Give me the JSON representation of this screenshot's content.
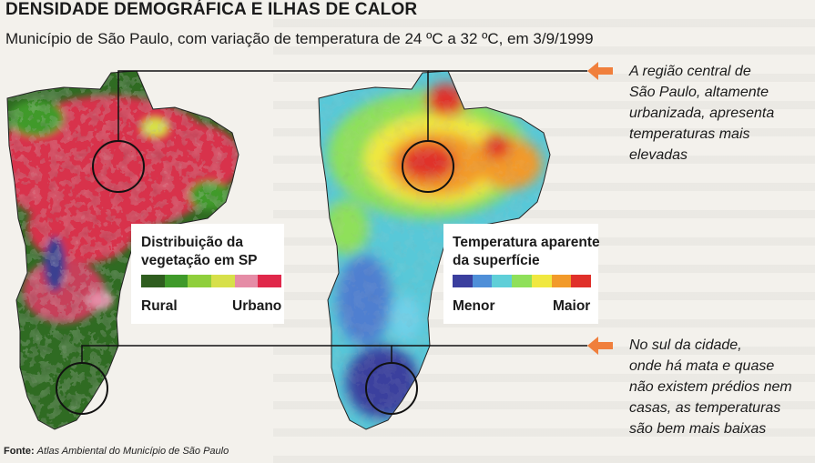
{
  "header": {
    "title": "DENSIDADE DEMOGRÁFICA E ILHAS DE CALOR",
    "subtitle": "Município de São Paulo, com variação de temperatura de 24 ºC a 32 ºC, em 3/9/1999"
  },
  "vegetation_map": {
    "legend_title_line1": "Distribuição da",
    "legend_title_line2": "vegetação em SP",
    "low_label": "Rural",
    "high_label": "Urbano",
    "scale_colors": [
      "#2f5d1f",
      "#3f9a2a",
      "#8fcf3c",
      "#d7e04a",
      "#e58ca6",
      "#e0284a"
    ]
  },
  "temperature_map": {
    "legend_title_line1": "Temperatura aparente",
    "legend_title_line2": "da superfície",
    "low_label": "Menor",
    "high_label": "Maior",
    "scale_colors": [
      "#3b3f9e",
      "#4f8fd8",
      "#5fcfd8",
      "#8fe05a",
      "#f0e840",
      "#f29a2a",
      "#e0302a"
    ]
  },
  "annotations": {
    "north_line1": "A região central de",
    "north_line2": "São Paulo, altamente",
    "north_line3": "urbanizada, apresenta",
    "north_line4": "temperaturas mais",
    "north_line5": "elevadas",
    "south_line1": "No sul da cidade,",
    "south_line2": "onde há mata e quase",
    "south_line3": "não existem prédios nem",
    "south_line4": "casas, as temperaturas",
    "south_line5": "são bem mais baixas"
  },
  "source": {
    "label": "Fonte:",
    "text": "Atlas Ambiental do Município de São Paulo"
  },
  "colors": {
    "arrow": "#f07f3c"
  }
}
